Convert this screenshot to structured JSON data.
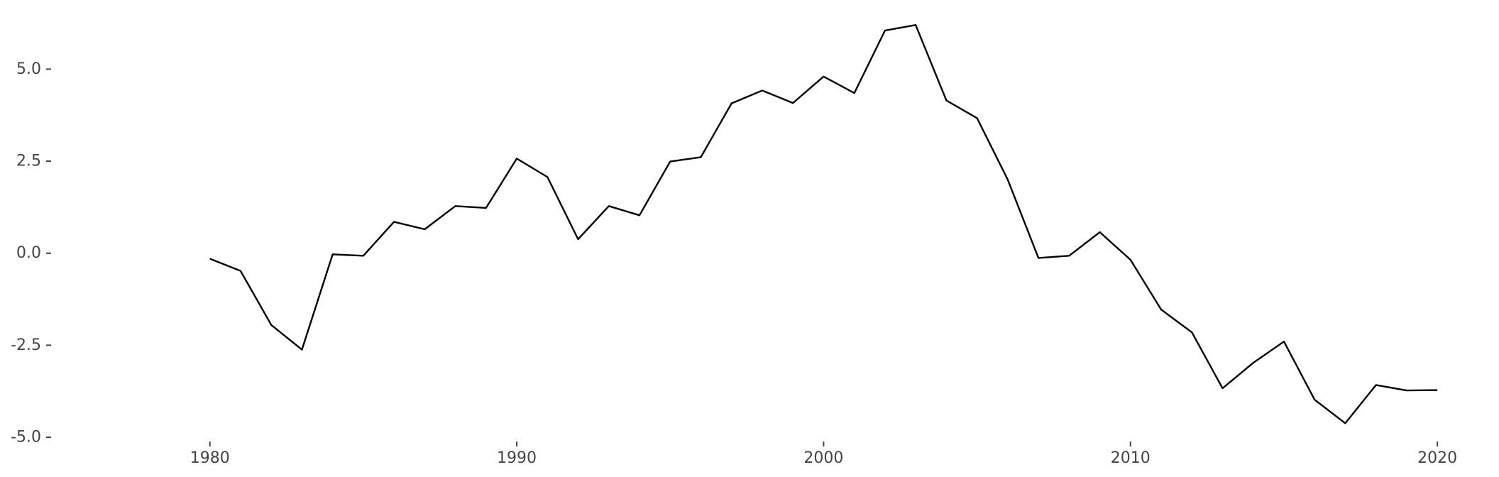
{
  "chart_data": {
    "type": "line",
    "title": "",
    "xlabel": "",
    "ylabel": "",
    "xlim": [
      1977,
      2021.5
    ],
    "ylim": [
      -5.0,
      6.3
    ],
    "x_ticks": [
      1980,
      1990,
      2000,
      2010,
      2020
    ],
    "y_ticks": [
      -5.0,
      -2.5,
      0.0,
      2.5,
      5.0
    ],
    "x_tick_labels": [
      "1980",
      "1990",
      "2000",
      "2010",
      "2020"
    ],
    "y_tick_labels": [
      "-5.0",
      "-2.5",
      "0.0",
      "2.5",
      "5.0"
    ],
    "grid": false,
    "line_color": "#000000",
    "series": [
      {
        "x": [
          1980,
          1981,
          1982,
          1983,
          1984,
          1985,
          1986,
          1987,
          1988,
          1989,
          1990,
          1991,
          1992,
          1993,
          1994,
          1995,
          1996,
          1997,
          1998,
          1999,
          2000,
          2001,
          2002,
          2003,
          2004,
          2005,
          2006,
          2007,
          2008,
          2009,
          2010,
          2011,
          2012,
          2013,
          2014,
          2015,
          2016,
          2017,
          2018,
          2019,
          2020
        ],
        "values": [
          -0.15,
          -0.48,
          -1.95,
          -2.62,
          -0.03,
          -0.07,
          0.85,
          0.65,
          1.28,
          1.23,
          2.57,
          2.07,
          0.38,
          1.28,
          1.03,
          2.49,
          2.61,
          4.07,
          4.42,
          4.08,
          4.8,
          4.35,
          6.05,
          6.2,
          4.15,
          3.67,
          2.0,
          -0.13,
          -0.07,
          0.57,
          -0.18,
          -1.53,
          -2.15,
          -3.67,
          -2.98,
          -2.4,
          -3.98,
          -4.62,
          -3.58,
          -3.73,
          -3.72
        ]
      }
    ]
  }
}
